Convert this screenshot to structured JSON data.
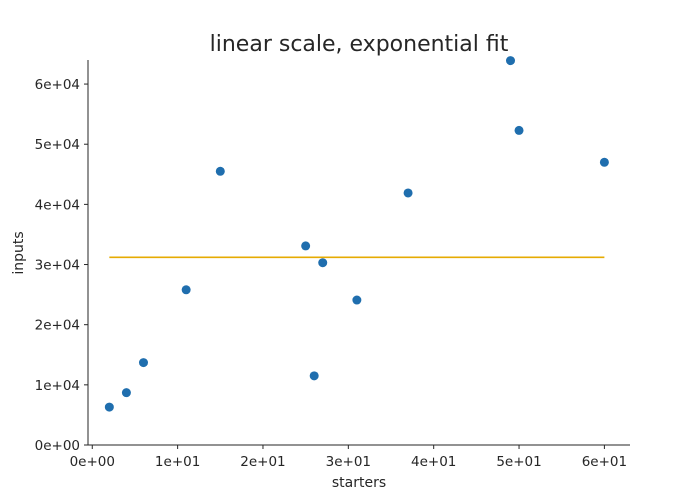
{
  "chart_data": {
    "type": "scatter",
    "title": "linear scale, exponential fit",
    "xlabel": "starters",
    "ylabel": "inputs",
    "xlim": [
      -0.5,
      63
    ],
    "ylim": [
      0,
      64000
    ],
    "xticks": [
      0,
      10,
      20,
      30,
      40,
      50,
      60
    ],
    "xtick_labels": [
      "0e+00",
      "1e+01",
      "2e+01",
      "3e+01",
      "4e+01",
      "5e+01",
      "6e+01"
    ],
    "yticks": [
      0,
      10000,
      20000,
      30000,
      40000,
      50000,
      60000
    ],
    "ytick_labels": [
      "0e+00",
      "1e+04",
      "2e+04",
      "3e+04",
      "4e+04",
      "5e+04",
      "6e+04"
    ],
    "grid": false,
    "series": [
      {
        "kind": "points",
        "color": "#1f6eae",
        "points": [
          {
            "x": 2,
            "y": 6300
          },
          {
            "x": 4,
            "y": 8700
          },
          {
            "x": 6,
            "y": 13700
          },
          {
            "x": 11,
            "y": 25800
          },
          {
            "x": 15,
            "y": 45500
          },
          {
            "x": 25,
            "y": 33100
          },
          {
            "x": 26,
            "y": 11500
          },
          {
            "x": 27,
            "y": 30300
          },
          {
            "x": 31,
            "y": 24100
          },
          {
            "x": 37,
            "y": 41900
          },
          {
            "x": 49,
            "y": 63900
          },
          {
            "x": 50,
            "y": 52300
          },
          {
            "x": 60,
            "y": 47000
          }
        ]
      },
      {
        "kind": "fit",
        "color": "#e6ab02",
        "points": [
          {
            "x": 2,
            "y": 31200
          },
          {
            "x": 60,
            "y": 31200
          }
        ]
      }
    ]
  }
}
